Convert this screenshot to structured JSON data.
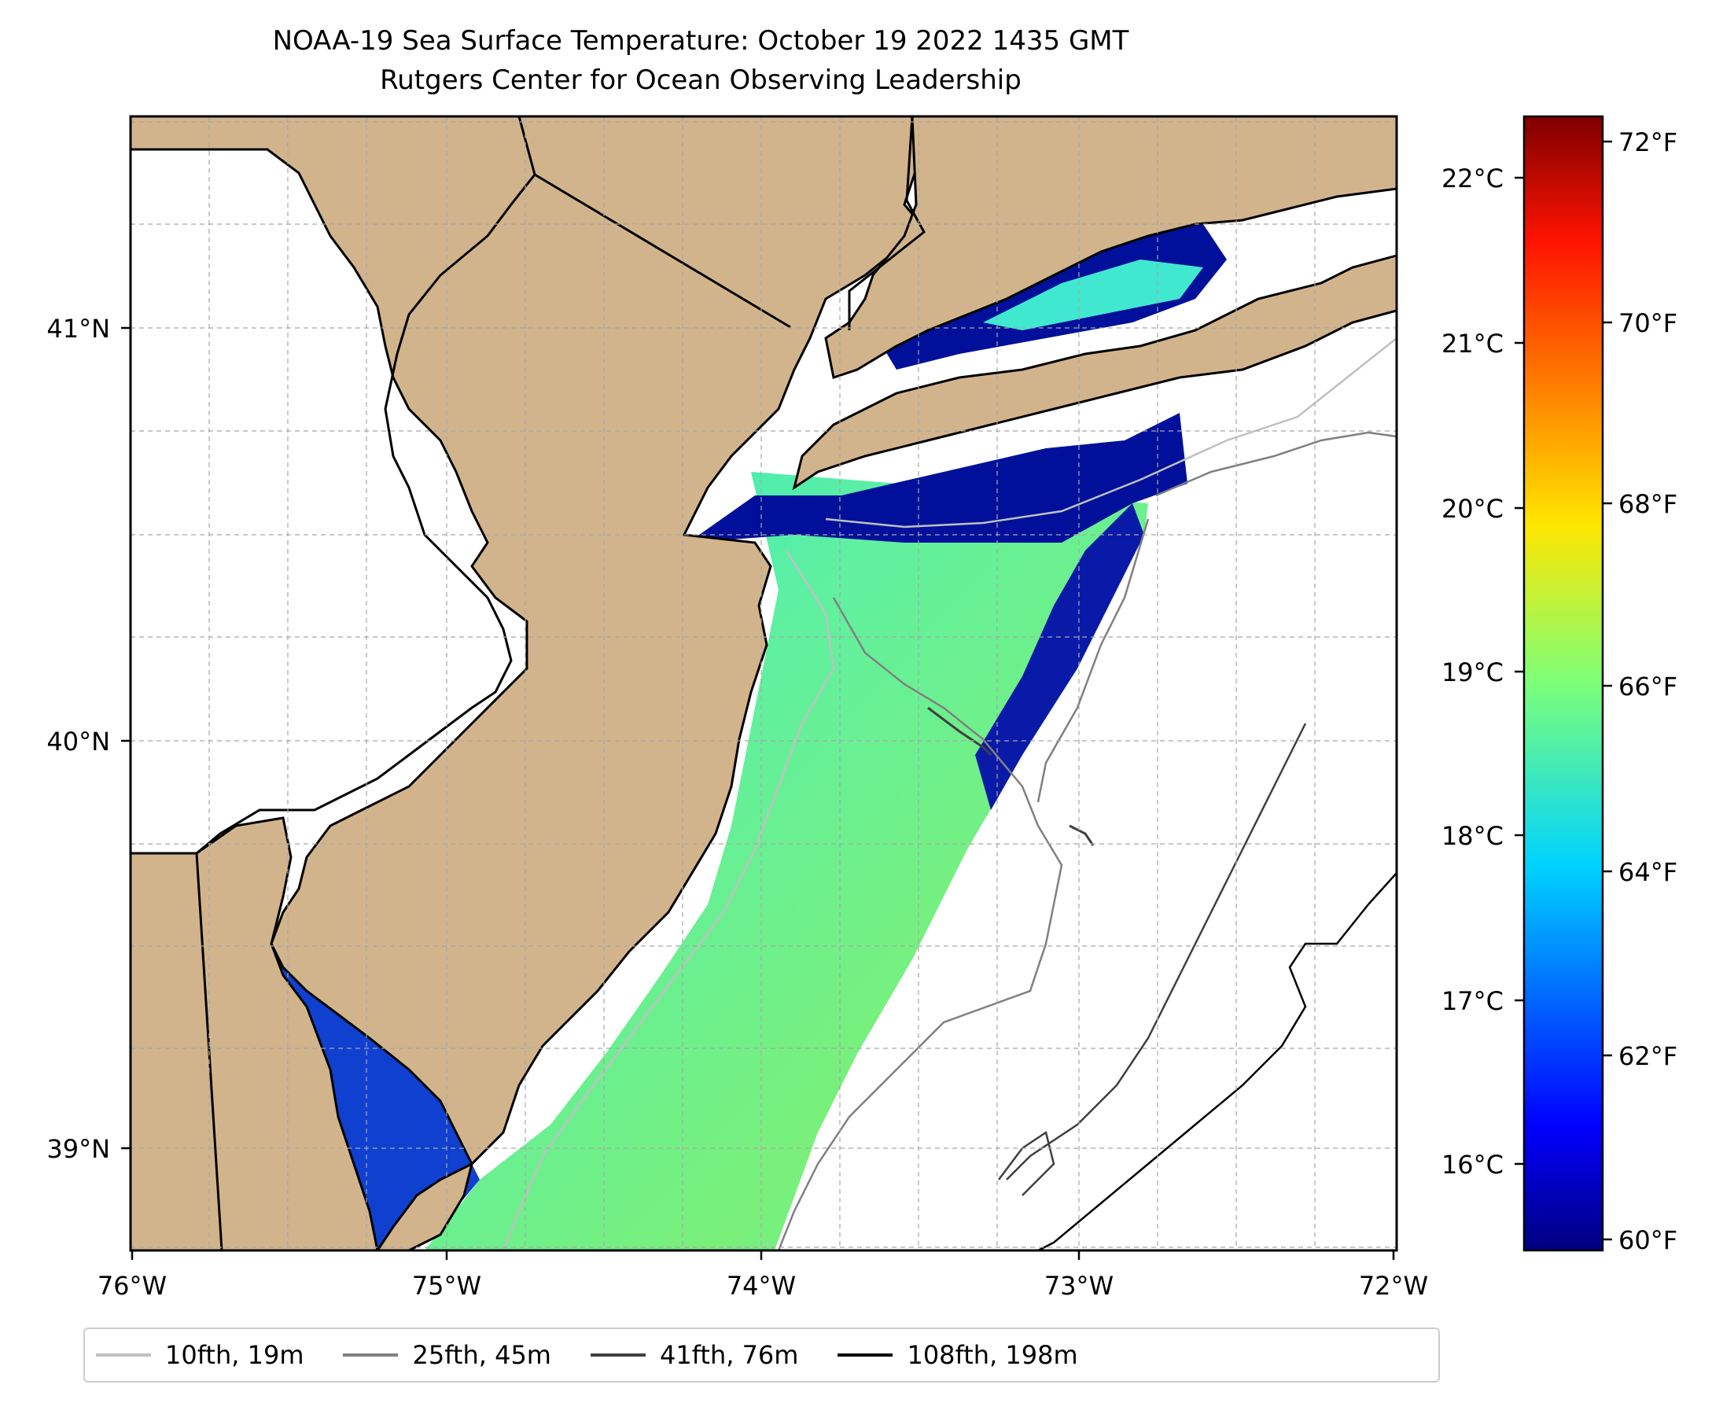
{
  "title": {
    "line1": "NOAA-19 Sea Surface Temperature: October 19 2022 1435 GMT",
    "line2": "Rutgers Center for Ocean Observing Leadership"
  },
  "map": {
    "lon_ticks": [
      "76°W",
      "75°W",
      "74°W",
      "73°W",
      "72°W"
    ],
    "lat_ticks": [
      "39°N",
      "40°N",
      "41°N"
    ],
    "land_color": "#d2b48c",
    "gridlines": true
  },
  "colorbar": {
    "celsius_ticks": [
      "16°C",
      "17°C",
      "18°C",
      "19°C",
      "20°C",
      "21°C",
      "22°C"
    ],
    "fahrenheit_ticks": [
      "60°F",
      "62°F",
      "64°F",
      "66°F",
      "68°F",
      "70°F",
      "72°F"
    ],
    "colormap": "jet"
  },
  "legend": {
    "items": [
      {
        "label": "10fth, 19m",
        "color": "#c0c0c0"
      },
      {
        "label": "25fth, 45m",
        "color": "#808080"
      },
      {
        "label": "41fth, 76m",
        "color": "#404040"
      },
      {
        "label": "108fth, 198m",
        "color": "#000000"
      }
    ]
  }
}
